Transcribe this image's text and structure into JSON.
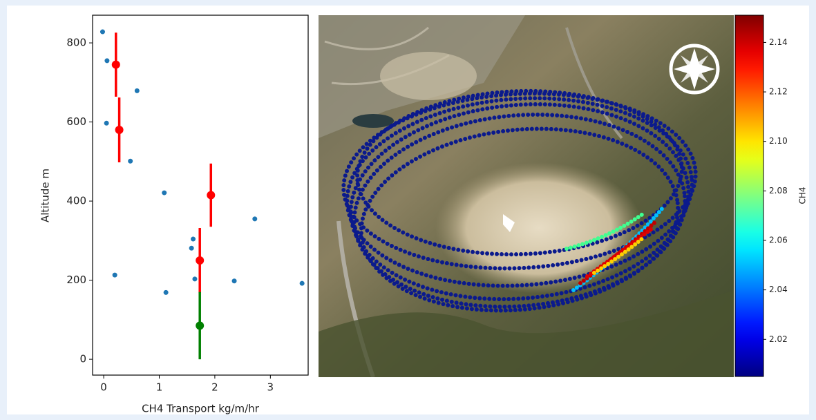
{
  "chart_data": [
    {
      "type": "scatter",
      "ylabel": "Altitude m",
      "xlabel": "CH4 Transport kg/m/hr",
      "xlim": [
        -0.2,
        3.68
      ],
      "ylim": [
        -40,
        870
      ],
      "xticks": [
        0,
        1,
        2,
        3
      ],
      "yticks": [
        0,
        200,
        400,
        600,
        800
      ],
      "series": [
        {
          "color": "#1f77b4",
          "x": [
            -0.02,
            0.06,
            0.6,
            0.05,
            0.48,
            1.09,
            2.72,
            1.61,
            1.58,
            0.2,
            1.64,
            2.35,
            3.57,
            1.12
          ],
          "values": [
            828,
            755,
            679,
            597,
            501,
            421,
            355,
            304,
            281,
            213,
            203,
            198,
            192,
            169
          ]
        },
        {
          "color": "#ff0000",
          "x": [
            0.22,
            0.28,
            1.93,
            1.73
          ],
          "values": [
            745,
            580,
            415,
            250
          ],
          "errors": [
            81,
            82,
            80,
            82
          ]
        },
        {
          "color": "#008000",
          "x": [
            1.73
          ],
          "values": [
            85
          ],
          "errors": [
            85
          ]
        }
      ]
    },
    {
      "type": "colorbar",
      "label": "CH4",
      "colormap": "jet",
      "ylim": [
        2.005,
        2.151
      ],
      "yticks": [
        2.02,
        2.04,
        2.06,
        2.08,
        {
          "value": 2.1,
          "label": "2.10"
        },
        2.12,
        2.14
      ]
    }
  ]
}
